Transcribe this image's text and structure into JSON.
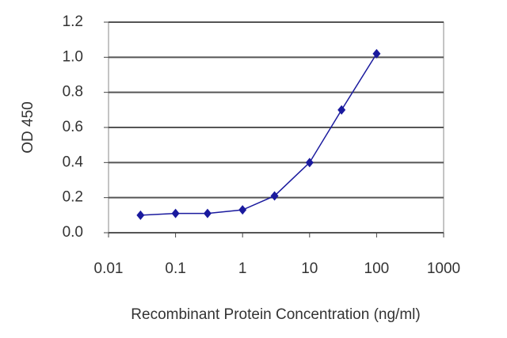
{
  "chart_data": {
    "type": "line",
    "x_label": "Recombinant Protein Concentration (ng/ml)",
    "y_label": "OD 450",
    "x": [
      0.03,
      0.1,
      0.3,
      1,
      3,
      10,
      30,
      100
    ],
    "series": [
      {
        "color": "#1a1a9e",
        "values": [
          0.1,
          0.11,
          0.11,
          0.13,
          0.21,
          0.4,
          0.7,
          1.02
        ]
      }
    ],
    "log_x": true,
    "xlim": [
      0.01,
      1000
    ],
    "xticks": [
      0.01,
      0.1,
      1,
      10,
      100,
      1000
    ],
    "ylim": [
      0,
      1.2
    ],
    "yticks": [
      {
        "value": 0,
        "label": "0.0"
      },
      0.2,
      0.4,
      0.6,
      0.8,
      {
        "value": 1,
        "label": "1.0"
      },
      1.2
    ],
    "grid": true
  }
}
